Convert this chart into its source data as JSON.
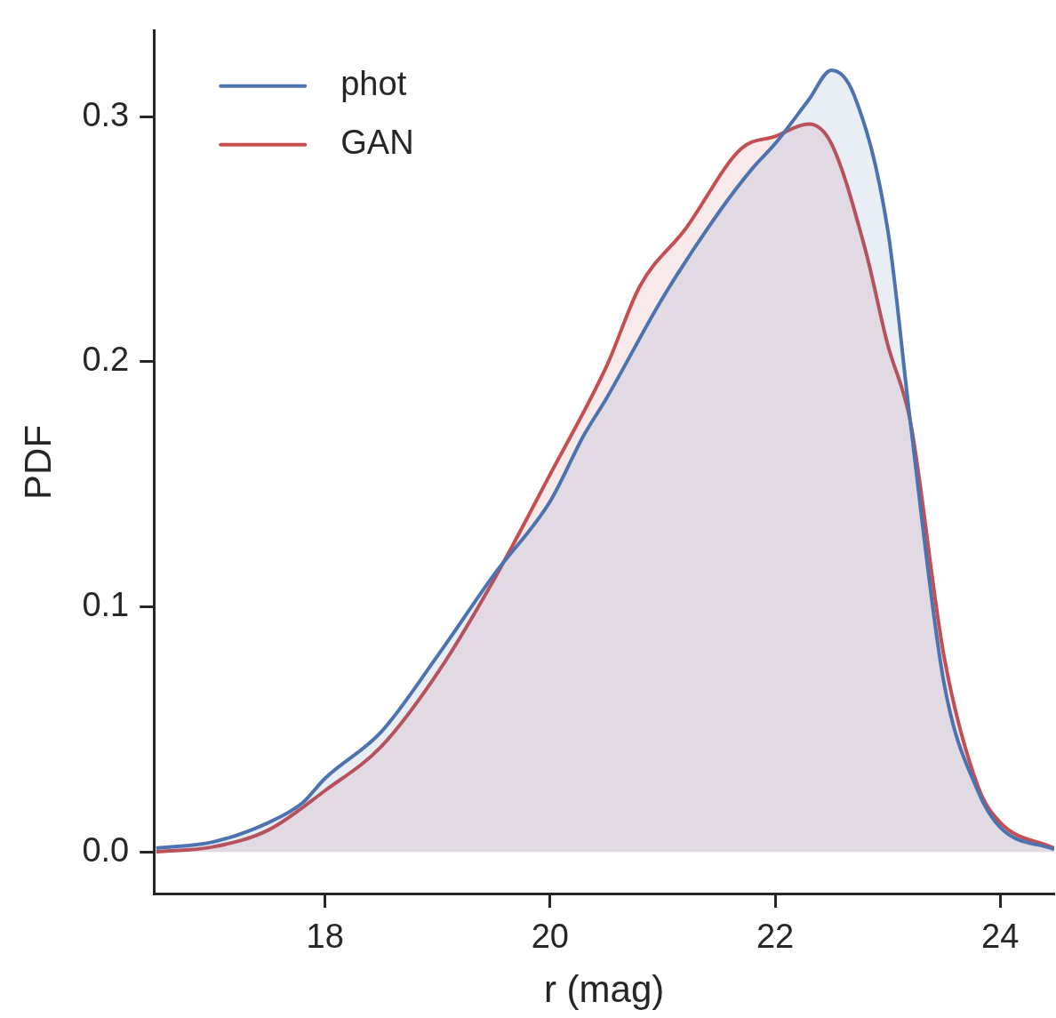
{
  "chart_data": {
    "type": "area",
    "xlabel": "r (mag)",
    "ylabel": "PDF",
    "xlim": [
      16.48,
      24.48
    ],
    "ylim": [
      -0.017,
      0.335
    ],
    "xticks": [
      18,
      20,
      22,
      24
    ],
    "yticks": [
      {
        "value": 0,
        "label": "0.0"
      },
      0.1,
      0.2,
      0.3
    ],
    "grid": false,
    "legend": "top left",
    "line_style": "solid",
    "marker": "none",
    "series": [
      {
        "name": "phot",
        "color": "#4c72b0",
        "x": [
          16.5,
          17.0,
          17.5,
          17.8,
          18.0,
          18.5,
          19.0,
          19.5,
          20.0,
          20.3,
          20.5,
          21.0,
          21.5,
          21.8,
          22.0,
          22.3,
          22.5,
          22.7,
          23.0,
          23.2,
          23.5,
          23.8,
          24.0,
          24.48
        ],
        "values": [
          0.0015,
          0.004,
          0.012,
          0.02,
          0.03,
          0.049,
          0.08,
          0.113,
          0.143,
          0.17,
          0.185,
          0.226,
          0.261,
          0.279,
          0.289,
          0.307,
          0.319,
          0.309,
          0.254,
          0.176,
          0.069,
          0.025,
          0.01,
          0.001
        ]
      },
      {
        "name": "GAN",
        "color": "#c44e52",
        "x": [
          16.5,
          17.0,
          17.5,
          18.0,
          18.5,
          19.0,
          19.5,
          20.0,
          20.5,
          20.8,
          21.2,
          21.7,
          22.0,
          22.3,
          22.5,
          22.8,
          23.0,
          23.2,
          23.5,
          23.8,
          24.0,
          24.48
        ],
        "values": [
          0.0,
          0.002,
          0.009,
          0.025,
          0.043,
          0.073,
          0.111,
          0.154,
          0.198,
          0.231,
          0.254,
          0.287,
          0.292,
          0.297,
          0.289,
          0.246,
          0.207,
          0.176,
          0.08,
          0.027,
          0.012,
          0.0015
        ]
      }
    ]
  }
}
